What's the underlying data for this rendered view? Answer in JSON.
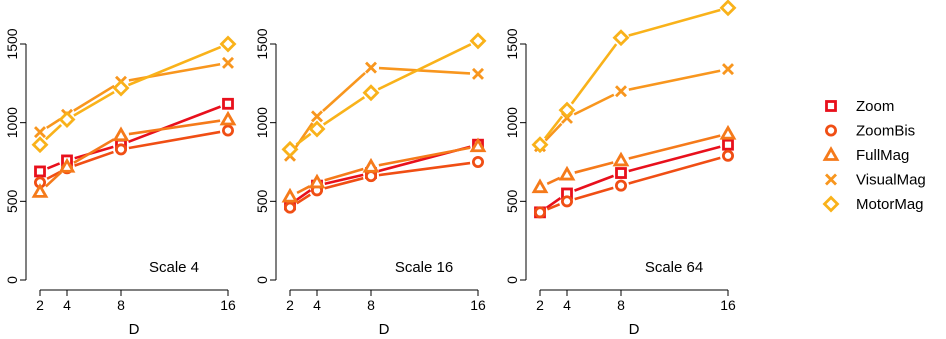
{
  "chart_data": [
    {
      "type": "line",
      "title": "Scale 4",
      "xlabel": "D",
      "ylabel": "",
      "x": [
        2,
        4,
        8,
        16
      ],
      "xticks": [
        "2",
        "4",
        "8",
        "16"
      ],
      "yticks": [
        "0",
        "500",
        "1000",
        "1500"
      ],
      "ylim": [
        0,
        1750
      ],
      "grid": false,
      "series": [
        {
          "name": "Zoom",
          "values": [
            690,
            760,
            860,
            1120
          ]
        },
        {
          "name": "ZoomBis",
          "values": [
            620,
            710,
            830,
            950
          ]
        },
        {
          "name": "FullMag",
          "values": [
            560,
            720,
            920,
            1020
          ]
        },
        {
          "name": "VisualMag",
          "values": [
            940,
            1050,
            1260,
            1380
          ]
        },
        {
          "name": "MotorMag",
          "values": [
            860,
            1020,
            1220,
            1500
          ]
        }
      ]
    },
    {
      "type": "line",
      "title": "Scale 16",
      "xlabel": "D",
      "ylabel": "",
      "x": [
        2,
        4,
        8,
        16
      ],
      "xticks": [
        "2",
        "4",
        "8",
        "16"
      ],
      "yticks": [
        "0",
        "500",
        "1000",
        "1500"
      ],
      "ylim": [
        0,
        1750
      ],
      "grid": false,
      "series": [
        {
          "name": "Zoom",
          "values": [
            480,
            600,
            680,
            860
          ]
        },
        {
          "name": "ZoomBis",
          "values": [
            460,
            570,
            660,
            750
          ]
        },
        {
          "name": "FullMag",
          "values": [
            530,
            620,
            720,
            850
          ]
        },
        {
          "name": "VisualMag",
          "values": [
            790,
            1040,
            1350,
            1310
          ]
        },
        {
          "name": "MotorMag",
          "values": [
            830,
            960,
            1190,
            1520
          ]
        }
      ]
    },
    {
      "type": "line",
      "title": "Scale 64",
      "xlabel": "D",
      "ylabel": "",
      "x": [
        2,
        4,
        8,
        16
      ],
      "xticks": [
        "2",
        "4",
        "8",
        "16"
      ],
      "yticks": [
        "0",
        "500",
        "1000",
        "1500"
      ],
      "ylim": [
        0,
        1750
      ],
      "grid": false,
      "series": [
        {
          "name": "Zoom",
          "values": [
            430,
            550,
            680,
            860
          ]
        },
        {
          "name": "ZoomBis",
          "values": [
            430,
            500,
            600,
            790
          ]
        },
        {
          "name": "FullMag",
          "values": [
            590,
            670,
            760,
            930
          ]
        },
        {
          "name": "VisualMag",
          "values": [
            850,
            1030,
            1200,
            1340
          ]
        },
        {
          "name": "MotorMag",
          "values": [
            860,
            1080,
            1540,
            1730
          ]
        }
      ]
    }
  ],
  "legend": {
    "placement": "right",
    "entries": [
      {
        "name": "Zoom",
        "color": "#e8101c",
        "marker": "square"
      },
      {
        "name": "ZoomBis",
        "color": "#f04e14",
        "marker": "circle"
      },
      {
        "name": "FullMag",
        "color": "#f57a1a",
        "marker": "triangle"
      },
      {
        "name": "VisualMag",
        "color": "#f8961e",
        "marker": "cross"
      },
      {
        "name": "MotorMag",
        "color": "#f9b21a",
        "marker": "diamond"
      }
    ]
  }
}
